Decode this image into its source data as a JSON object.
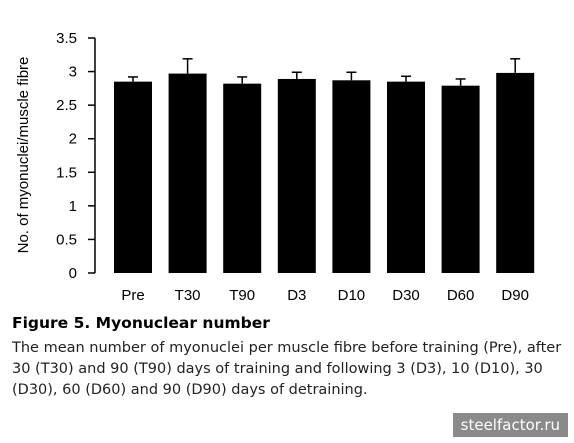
{
  "chart_data": {
    "type": "bar",
    "categories": [
      "Pre",
      "T30",
      "T90",
      "D3",
      "D10",
      "D30",
      "D60",
      "D90"
    ],
    "values": [
      2.85,
      2.97,
      2.82,
      2.89,
      2.87,
      2.85,
      2.79,
      2.98
    ],
    "errors": [
      0.07,
      0.22,
      0.1,
      0.1,
      0.12,
      0.08,
      0.1,
      0.21
    ],
    "ylabel": "No. of myonuclei/muscle fibre",
    "xlabel": "",
    "ylim": [
      0,
      3.5
    ],
    "yticks": [
      "0",
      "0.5",
      "1",
      "1.5",
      "2",
      "2.5",
      "3",
      "3.5"
    ],
    "grid": false,
    "bar_color": "#000000"
  },
  "caption": {
    "title": "Figure 5.  Myonuclear number",
    "body": "The mean number of myonuclei per muscle fibre before training (Pre), after 30 (T30) and 90 (T90) days of training and following 3 (D3), 10 (D10), 30 (D30), 60 (D60) and 90 (D90) days of detraining."
  },
  "watermark": "steelfactor.ru"
}
